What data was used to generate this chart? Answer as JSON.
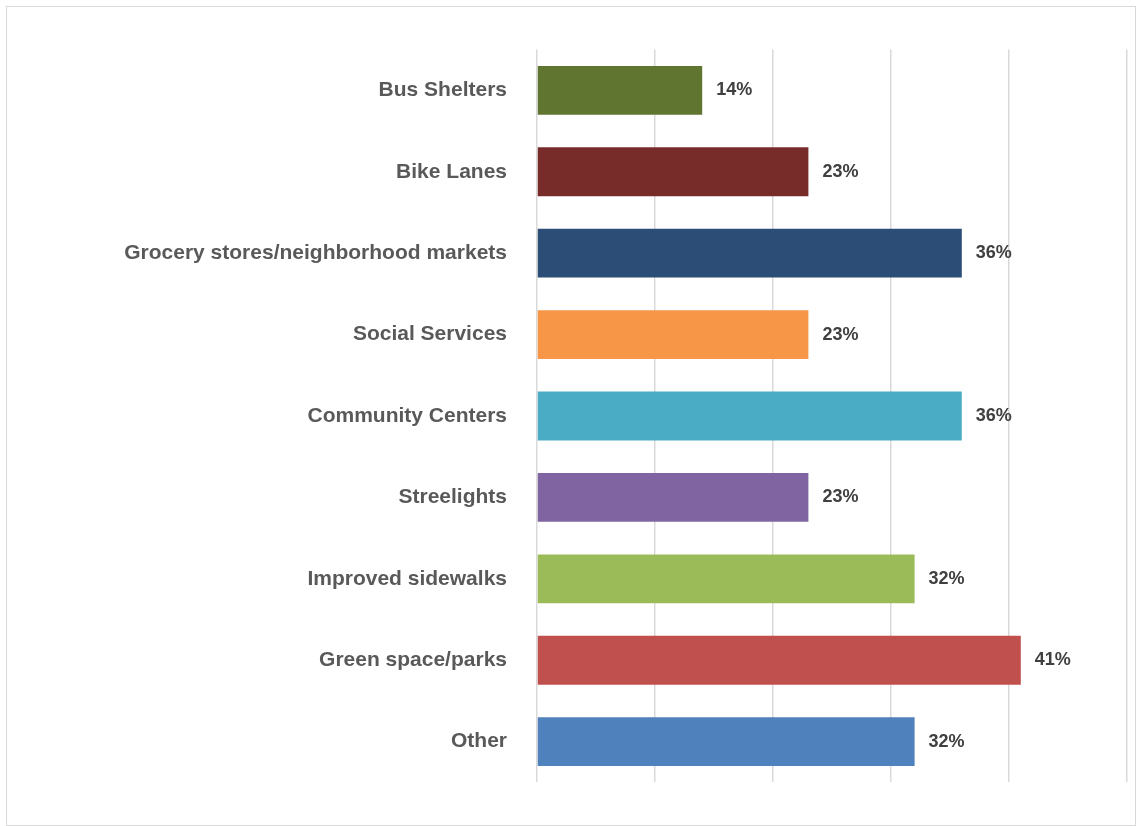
{
  "chart_data": {
    "type": "bar",
    "orientation": "horizontal",
    "categories": [
      "Bus Shelters",
      "Bike Lanes",
      "Grocery stores/neighborhood markets",
      "Social Services",
      "Community Centers",
      "Streelights",
      "Improved sidewalks",
      "Green space/parks",
      "Other"
    ],
    "values": [
      14,
      23,
      36,
      23,
      36,
      23,
      32,
      41,
      32
    ],
    "colors": [
      "#5f7530",
      "#772c2a",
      "#2c4d75",
      "#f79646",
      "#4bacc6",
      "#8064a2",
      "#9bbb59",
      "#c0504d",
      "#4f81bd"
    ],
    "value_labels": [
      "14%",
      "23%",
      "36%",
      "23%",
      "36%",
      "23%",
      "32%",
      "41%",
      "32%"
    ],
    "xlim": [
      0,
      50
    ],
    "xticks": [
      {
        "value": 0,
        "label": null
      },
      {
        "value": 10,
        "label": null
      },
      {
        "value": 20,
        "label": null
      },
      {
        "value": 30,
        "label": null
      },
      {
        "value": 40,
        "label": null
      },
      {
        "value": 50,
        "label": null
      }
    ],
    "grid": "x",
    "tick_labels": "y",
    "legend": false
  }
}
